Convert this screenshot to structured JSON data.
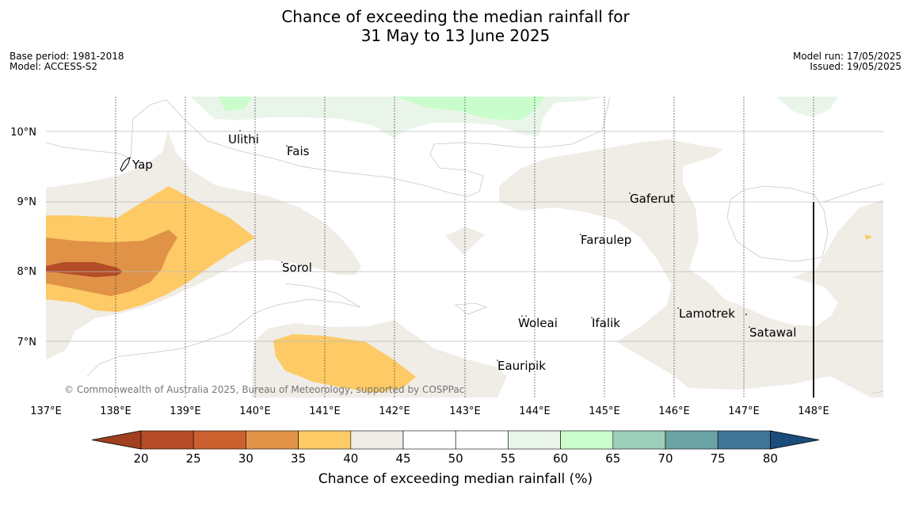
{
  "title_line1": "Chance of exceeding the median rainfall for",
  "title_line2": "31 May to 13 June 2025",
  "meta_left": [
    "Base period: 1981-2018",
    "Model: ACCESS-S2"
  ],
  "meta_right": [
    "Model run: 17/05/2025",
    "Issued: 19/05/2025"
  ],
  "credit": "© Commonwealth of Australia 2025, Bureau of Meteorology, supported by COSPPac",
  "map": {
    "lon_range": [
      137,
      149
    ],
    "lat_range": [
      6.2,
      10.5
    ],
    "lon_ticks": [
      "137°E",
      "138°E",
      "139°E",
      "140°E",
      "141°E",
      "142°E",
      "143°E",
      "144°E",
      "145°E",
      "146°E",
      "147°E",
      "148°E"
    ],
    "lat_ticks": [
      "10°N",
      "9°N",
      "8°N",
      "7°N"
    ],
    "places": [
      {
        "name": "Yap"
      },
      {
        "name": "Ulithi"
      },
      {
        "name": "Fais"
      },
      {
        "name": "Gaferut"
      },
      {
        "name": "Faraulep"
      },
      {
        "name": "Sorol"
      },
      {
        "name": "Lamotrek"
      },
      {
        "name": "Woleai"
      },
      {
        "name": "Ifalik"
      },
      {
        "name": "Satawal"
      },
      {
        "name": "Eauripik"
      }
    ]
  },
  "colorbar": {
    "title": "Chance of exceeding median rainfall (%)",
    "ticks": [
      "20",
      "25",
      "30",
      "35",
      "40",
      "45",
      "50",
      "55",
      "60",
      "65",
      "70",
      "75",
      "80"
    ],
    "colors": [
      "#a1401e",
      "#b44d27",
      "#cc6130",
      "#e09347",
      "#fdca65",
      "#f0ece6",
      "#ffffff",
      "#ffffff",
      "#eaf5ea",
      "#c9fdcb",
      "#9ccfba",
      "#6ba3a5",
      "#417596",
      "#1b4d7c"
    ]
  }
}
